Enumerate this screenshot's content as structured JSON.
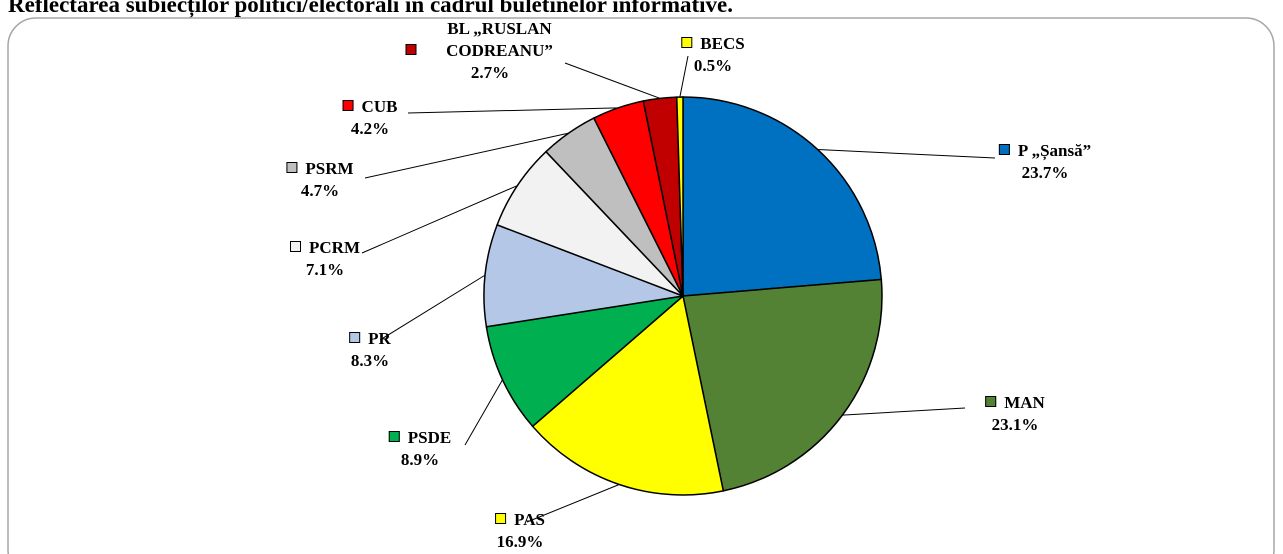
{
  "chart_data": {
    "type": "pie",
    "title": "Reflectarea subiecților politici/electorali în cadrul buletinelor informative.",
    "categories": [
      "P „Șansă”",
      "MAN",
      "PAS",
      "PSDE",
      "PR",
      "PCRM",
      "PSRM",
      "CUB",
      "BL „RUSLAN CODREANU”",
      "BECS"
    ],
    "values": [
      23.7,
      23.1,
      16.9,
      8.9,
      8.3,
      7.1,
      4.7,
      4.2,
      2.7,
      0.5
    ],
    "value_labels": [
      "23.7%",
      "23.1%",
      "16.9%",
      "8.9%",
      "8.3%",
      "7.1%",
      "4.7%",
      "4.2%",
      "2.7%",
      "0.5%"
    ],
    "colors": [
      "#0070c0",
      "#548235",
      "#ffff00",
      "#00b050",
      "#b4c7e7",
      "#f2f2f2",
      "#bfbfbf",
      "#ff0000",
      "#c00000",
      "#ffff00"
    ]
  }
}
